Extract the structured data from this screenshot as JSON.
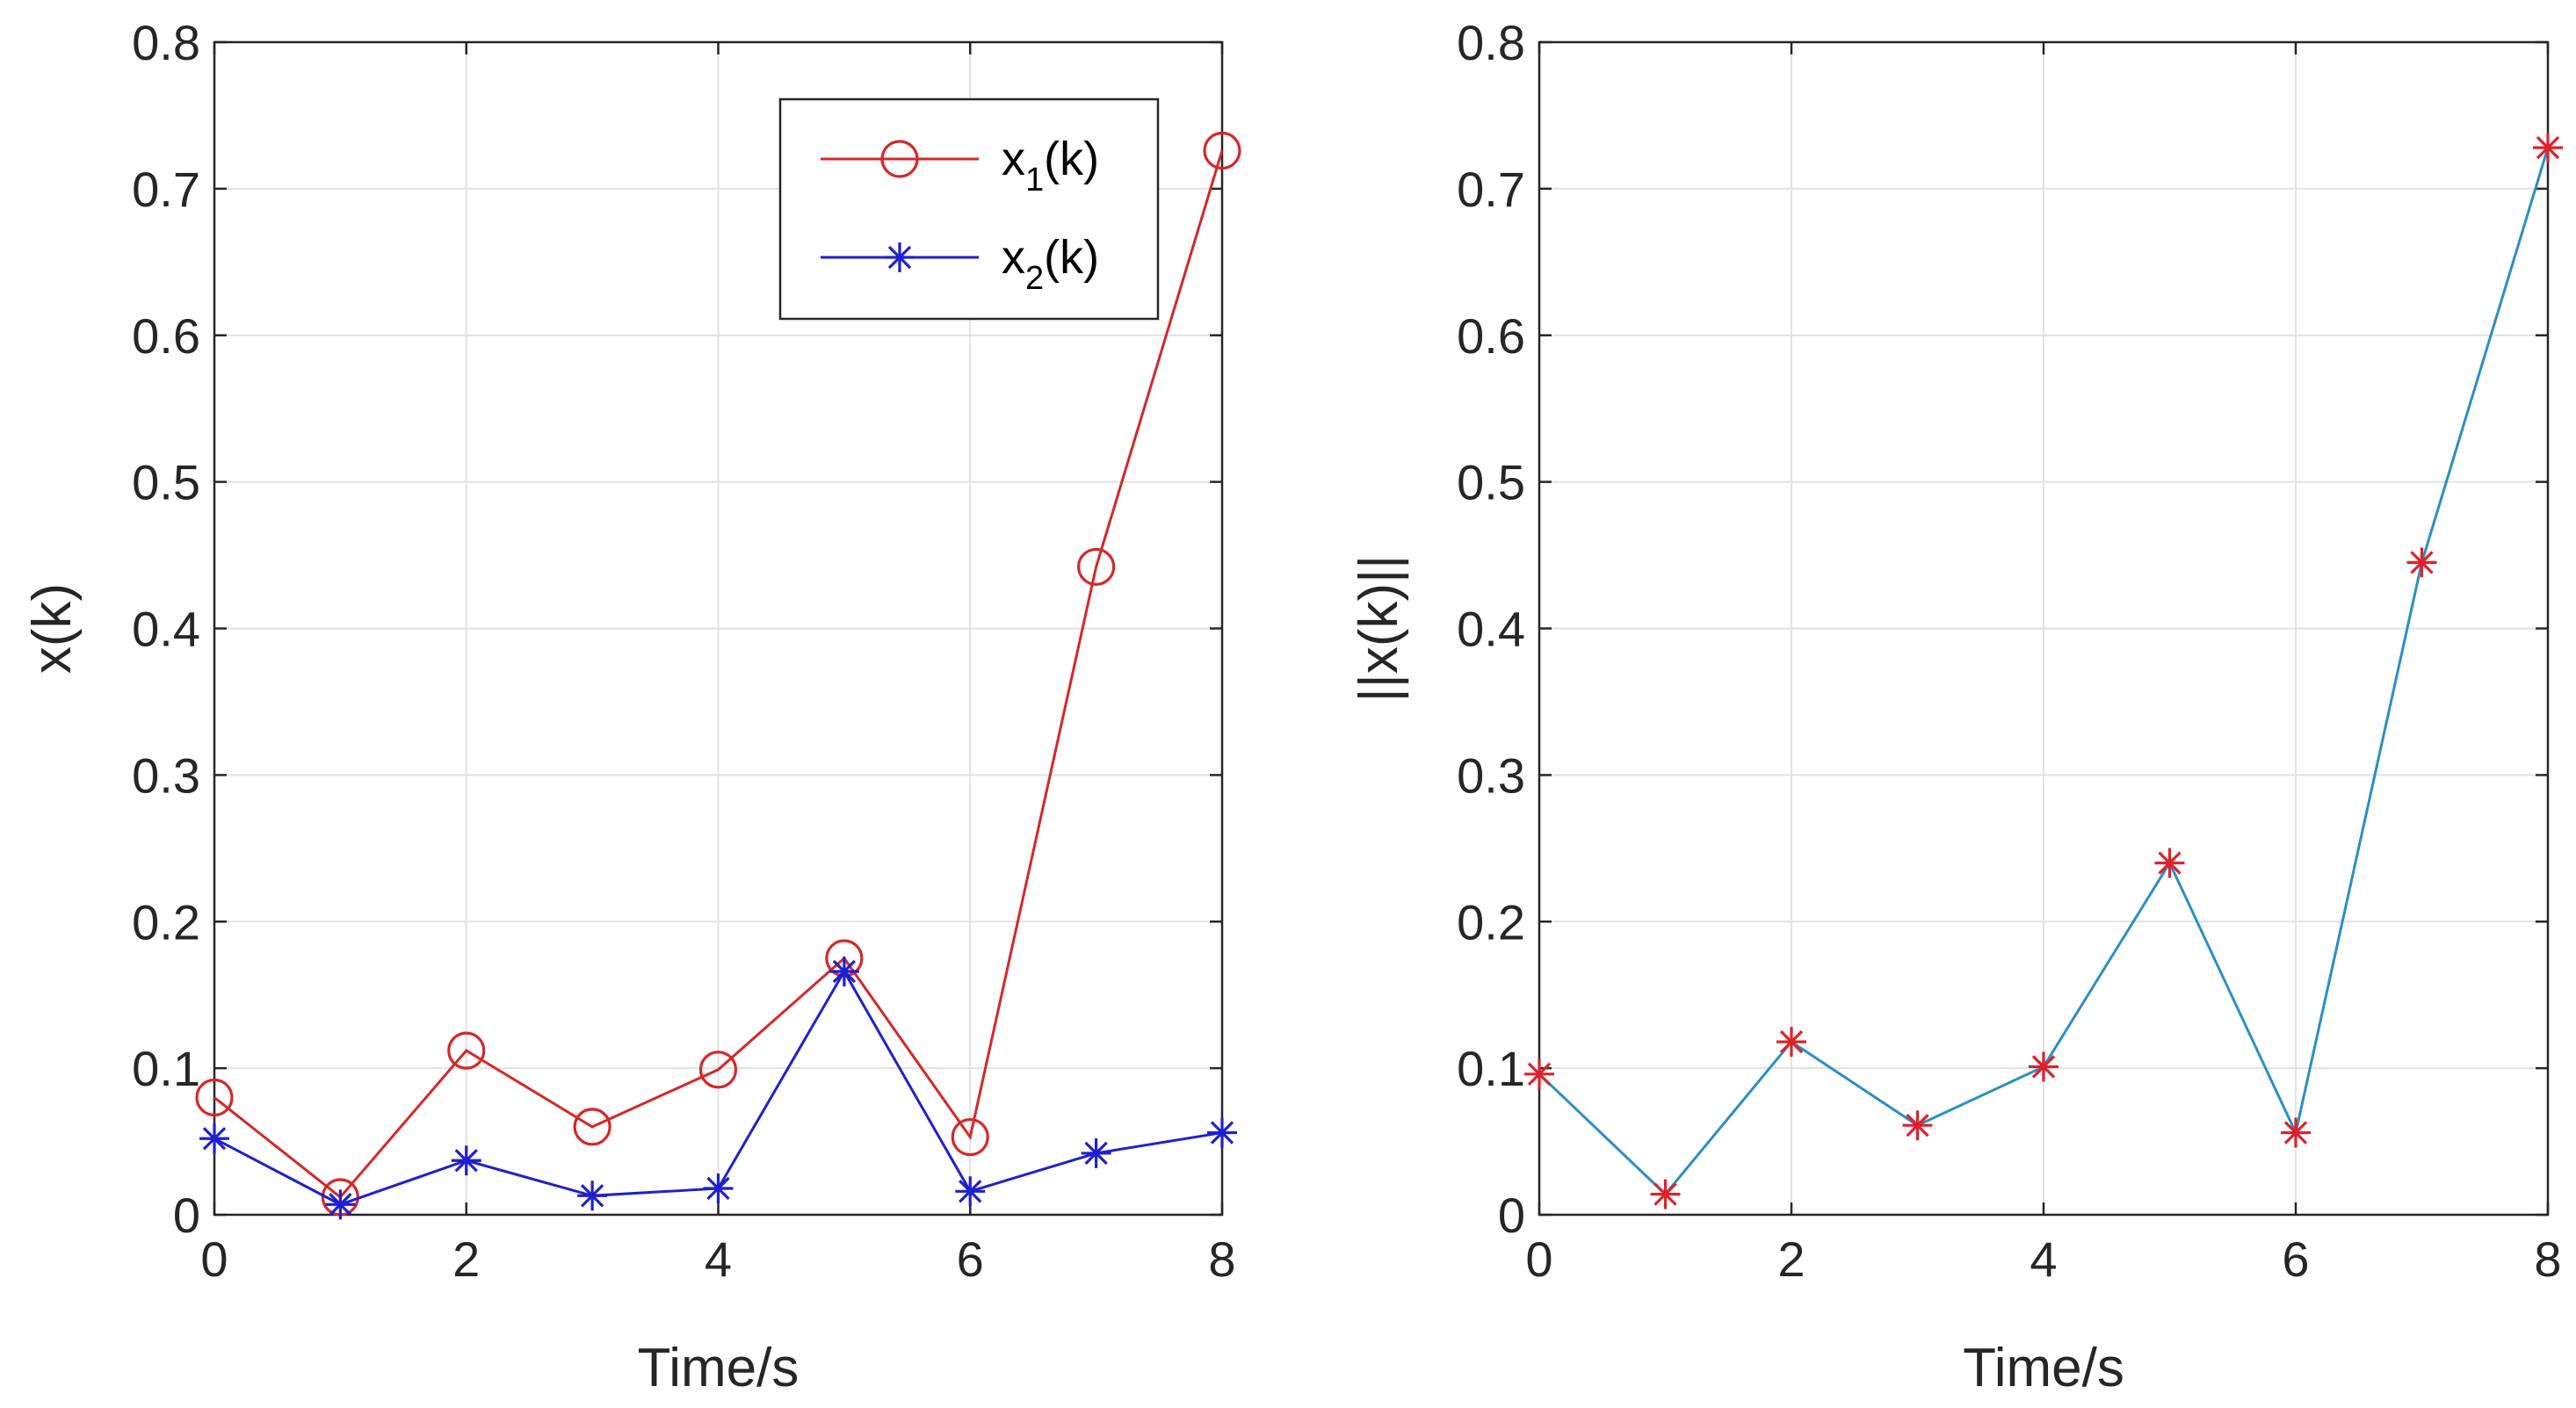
{
  "chart_data": [
    {
      "type": "line",
      "xlabel": "Time/s",
      "ylabel": "x(k)",
      "xlim": [
        0,
        8
      ],
      "ylim": [
        0,
        0.8
      ],
      "xticks": [
        "0",
        "2",
        "4",
        "6",
        "8"
      ],
      "yticks": [
        "0",
        "0.1",
        "0.2",
        "0.3",
        "0.4",
        "0.5",
        "0.6",
        "0.7",
        "0.8"
      ],
      "grid": true,
      "legend_position": "top-right",
      "x": [
        0,
        1,
        2,
        3,
        4,
        5,
        6,
        7,
        8
      ],
      "series": [
        {
          "name": "x1(k)",
          "legend_base": "x",
          "legend_sub": "1",
          "legend_tail": "(k)",
          "marker": "circle",
          "color": "#d62728",
          "values": [
            0.08,
            0.012,
            0.112,
            0.06,
            0.099,
            0.175,
            0.053,
            0.442,
            0.726
          ]
        },
        {
          "name": "x2(k)",
          "legend_base": "x",
          "legend_sub": "2",
          "legend_tail": "(k)",
          "marker": "asterisk",
          "color": "#1f1fd1",
          "values": [
            0.052,
            0.007,
            0.037,
            0.013,
            0.018,
            0.166,
            0.016,
            0.042,
            0.056
          ]
        }
      ]
    },
    {
      "type": "line",
      "xlabel": "Time/s",
      "ylabel": "||x(k)||",
      "xlim": [
        0,
        8
      ],
      "ylim": [
        0,
        0.8
      ],
      "xticks": [
        "0",
        "2",
        "4",
        "6",
        "8"
      ],
      "yticks": [
        "0",
        "0.1",
        "0.2",
        "0.3",
        "0.4",
        "0.5",
        "0.6",
        "0.7",
        "0.8"
      ],
      "grid": true,
      "x": [
        0,
        1,
        2,
        3,
        4,
        5,
        6,
        7,
        8
      ],
      "series": [
        {
          "name": "||x(k)||",
          "marker": "asterisk",
          "color": "#2a8fc4",
          "marker_color": "#e0202a",
          "values": [
            0.096,
            0.014,
            0.118,
            0.061,
            0.101,
            0.24,
            0.056,
            0.445,
            0.728
          ]
        }
      ]
    }
  ]
}
